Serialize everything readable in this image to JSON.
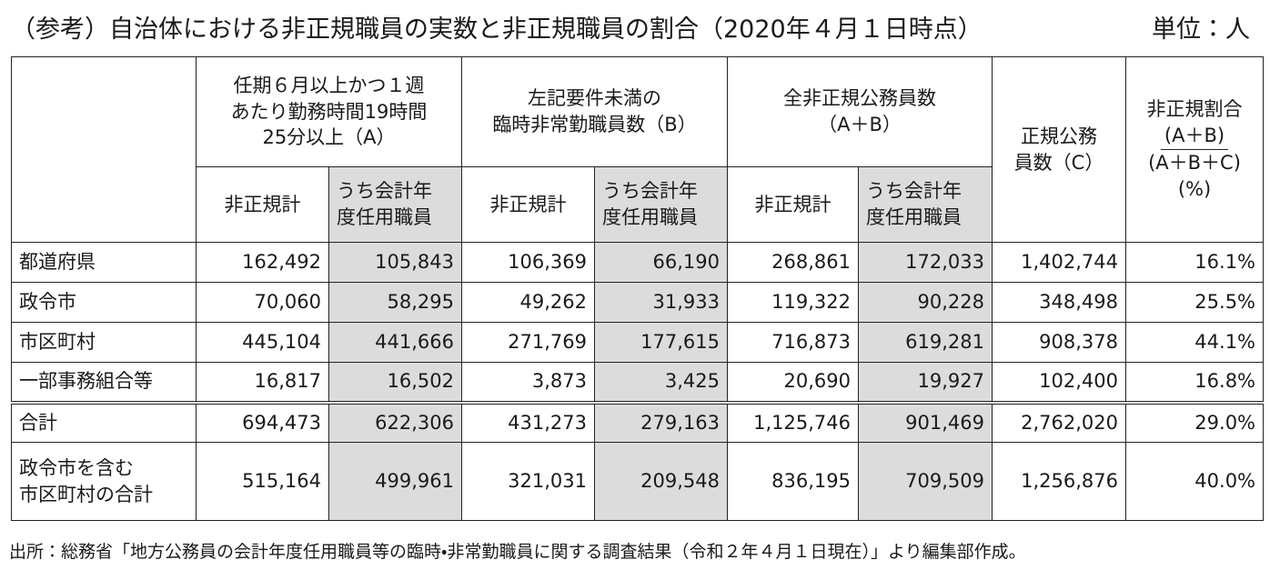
{
  "header": {
    "title": "（参考）自治体における非正規職員の実数と非正規職員の割合（2020年４月１日時点）",
    "unit": "単位：人"
  },
  "table": {
    "groups": [
      {
        "lines": [
          "任期６月以上かつ１週",
          "あたり勤務時間19時間",
          "25分以上（A）"
        ]
      },
      {
        "lines": [
          "左記要件未満の",
          "臨時非常勤職員数（B）"
        ]
      },
      {
        "lines": [
          "全非正規公務員数",
          "（A＋B）"
        ]
      }
    ],
    "regular": {
      "lines": [
        "正規公務",
        "員数（C）"
      ]
    },
    "ratio": {
      "title": "非正規割合",
      "numerator": "(A＋B)",
      "denominator": "(A＋B＋C)",
      "unit": "(%)"
    },
    "subheaders": [
      {
        "lines": [
          "非正規計"
        ]
      },
      {
        "lines": [
          "うち会計年",
          "度任用職員"
        ]
      },
      {
        "lines": [
          "非正規計"
        ]
      },
      {
        "lines": [
          "うち会計年",
          "度任用職員"
        ]
      },
      {
        "lines": [
          "非正規計"
        ]
      },
      {
        "lines": [
          "うち会計年",
          "度任用職員"
        ]
      }
    ],
    "rows": [
      {
        "lines": [
          "都道府県"
        ],
        "cells": [
          "162,492",
          "105,843",
          "106,369",
          "66,190",
          "268,861",
          "172,033",
          "1,402,744",
          "16.1%"
        ]
      },
      {
        "lines": [
          "政令市"
        ],
        "cells": [
          "70,060",
          "58,295",
          "49,262",
          "31,933",
          "119,322",
          "90,228",
          "348,498",
          "25.5%"
        ]
      },
      {
        "lines": [
          "市区町村"
        ],
        "cells": [
          "445,104",
          "441,666",
          "271,769",
          "177,615",
          "716,873",
          "619,281",
          "908,378",
          "44.1%"
        ]
      },
      {
        "lines": [
          "一部事務組合等"
        ],
        "cells": [
          "16,817",
          "16,502",
          "3,873",
          "3,425",
          "20,690",
          "19,927",
          "102,400",
          "16.8%"
        ]
      },
      {
        "lines": [
          "合計"
        ],
        "cells": [
          "694,473",
          "622,306",
          "431,273",
          "279,163",
          "1,125,746",
          "901,469",
          "2,762,020",
          "29.0%"
        ]
      },
      {
        "lines": [
          "政令市を含む",
          "市区町村の合計"
        ],
        "cells": [
          "515,164",
          "499,961",
          "321,031",
          "209,548",
          "836,195",
          "709,509",
          "1,256,876",
          "40.0%"
        ]
      }
    ]
  },
  "footer": {
    "source": "出所：総務省「地方公務員の会計年度任用職員等の臨時・非常勤職員に関する調査結果（令和２年４月１日現在）」より編集部作成。"
  }
}
